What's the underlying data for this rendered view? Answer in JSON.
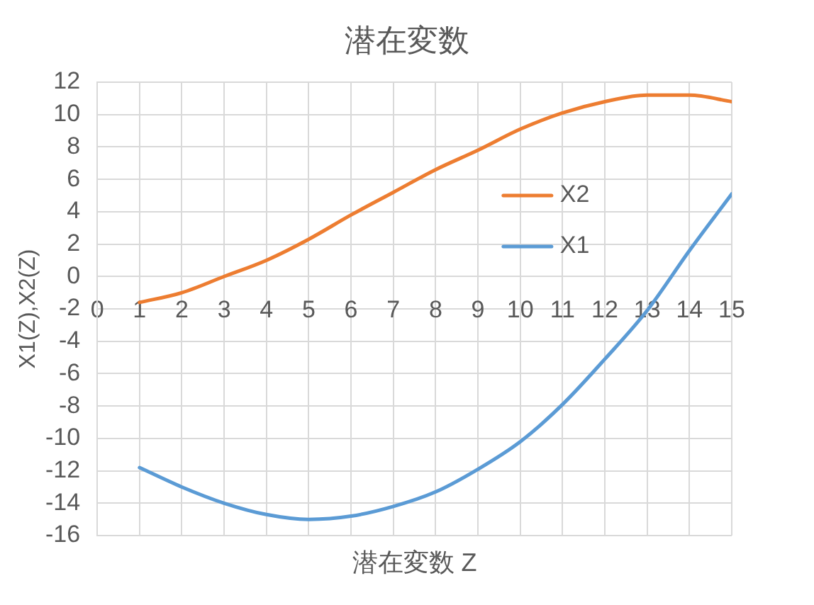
{
  "chart_data": {
    "type": "line",
    "title": "潜在変数",
    "xlabel": "潜在変数 Z",
    "ylabel": "X1(Z),X2(Z)",
    "x": [
      1,
      2,
      3,
      4,
      5,
      6,
      7,
      8,
      9,
      10,
      11,
      12,
      13,
      14,
      15
    ],
    "series": [
      {
        "name": "X2",
        "color": "#ed7d31",
        "values": [
          -1.6,
          -1.0,
          0,
          1.0,
          2.3,
          3.8,
          5.2,
          6.6,
          7.8,
          9.1,
          10.1,
          10.8,
          11.2,
          11.2,
          10.8
        ]
      },
      {
        "name": "X1",
        "color": "#5b9bd5",
        "values": [
          -11.8,
          -13.0,
          -14.0,
          -14.7,
          -15.0,
          -14.8,
          -14.2,
          -13.3,
          -11.9,
          -10.2,
          -7.9,
          -5.1,
          -2.1,
          1.6,
          5.1
        ]
      }
    ],
    "xlim": [
      0,
      15
    ],
    "xticks": [
      0,
      1,
      2,
      3,
      4,
      5,
      6,
      7,
      8,
      9,
      10,
      11,
      12,
      13,
      14,
      15
    ],
    "ylim": [
      -16,
      12
    ],
    "yticks": [
      -16,
      -14,
      -12,
      -10,
      -8,
      -6,
      -4,
      -2,
      0,
      2,
      4,
      6,
      8,
      10,
      12
    ],
    "grid": true,
    "legend": "right",
    "marker": "none",
    "line_style": "solid"
  }
}
